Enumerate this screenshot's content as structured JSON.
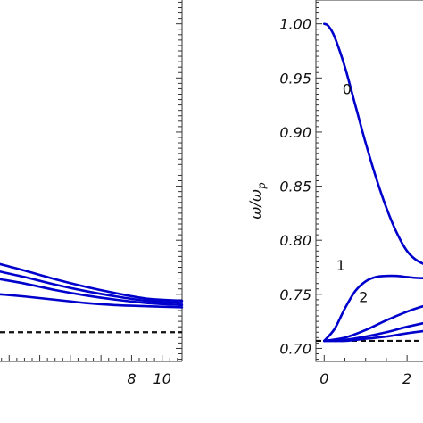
{
  "chart_data": [
    {
      "type": "line",
      "xlabel": "",
      "ylabel": "",
      "xlim": [
        -0.6,
        11.3
      ],
      "ylim": [
        0.688,
        1.022
      ],
      "x_ticks": [
        8,
        10
      ],
      "x_tick_labels": [
        "8",
        "10"
      ],
      "reference_line": {
        "y": 0.715,
        "style": "dashed"
      },
      "series": [
        {
          "x": [
            -0.6,
            1,
            3,
            5,
            7,
            9,
            11.3
          ],
          "values": [
            0.778,
            0.772,
            0.764,
            0.757,
            0.751,
            0.746,
            0.744
          ]
        },
        {
          "x": [
            -0.6,
            1,
            3,
            5,
            7,
            9,
            11.3
          ],
          "values": [
            0.771,
            0.766,
            0.759,
            0.753,
            0.748,
            0.744,
            0.742
          ]
        },
        {
          "x": [
            -0.6,
            1,
            3,
            5,
            7,
            9,
            11.3
          ],
          "values": [
            0.764,
            0.76,
            0.754,
            0.749,
            0.745,
            0.742,
            0.74
          ]
        },
        {
          "x": [
            -0.6,
            1,
            3,
            5,
            7,
            9,
            11.3
          ],
          "values": [
            0.75,
            0.748,
            0.745,
            0.742,
            0.74,
            0.739,
            0.738
          ]
        }
      ]
    },
    {
      "type": "line",
      "xlabel": "",
      "ylabel": "ω/ω",
      "ylabel_subscript": "p",
      "xlim": [
        -0.2,
        2.6
      ],
      "ylim": [
        0.688,
        1.022
      ],
      "x_ticks": [
        0,
        2
      ],
      "x_tick_labels": [
        "0",
        "2"
      ],
      "y_ticks": [
        0.7,
        0.75,
        0.8,
        0.85,
        0.9,
        0.95,
        1.0
      ],
      "y_tick_labels": [
        "0.70",
        "0.75",
        "0.80",
        "0.85",
        "0.90",
        "0.95",
        "1.00"
      ],
      "reference_line": {
        "y": 0.707,
        "style": "dashed"
      },
      "series": [
        {
          "name": "0",
          "x": [
            0,
            0.1,
            0.25,
            0.5,
            0.75,
            1.0,
            1.25,
            1.5,
            1.75,
            2.0,
            2.25,
            2.6
          ],
          "values": [
            1.0,
            0.998,
            0.988,
            0.96,
            0.925,
            0.89,
            0.858,
            0.83,
            0.807,
            0.79,
            0.781,
            0.775
          ]
        },
        {
          "name": "1",
          "x": [
            0,
            0.25,
            0.5,
            0.75,
            1.0,
            1.25,
            1.5,
            1.75,
            2.0,
            2.3,
            2.6
          ],
          "values": [
            0.707,
            0.718,
            0.737,
            0.753,
            0.762,
            0.766,
            0.767,
            0.767,
            0.766,
            0.765,
            0.765
          ]
        },
        {
          "name": "2",
          "x": [
            0,
            0.5,
            1.0,
            1.5,
            2.0,
            2.3,
            2.6
          ],
          "values": [
            0.707,
            0.71,
            0.717,
            0.726,
            0.734,
            0.738,
            0.741
          ]
        },
        {
          "name": "",
          "x": [
            0,
            0.5,
            1.0,
            1.5,
            2.0,
            2.6
          ],
          "values": [
            0.707,
            0.708,
            0.711,
            0.715,
            0.72,
            0.725
          ]
        },
        {
          "name": "",
          "x": [
            0,
            0.5,
            1.0,
            1.5,
            2.0,
            2.6
          ],
          "values": [
            0.707,
            0.707,
            0.709,
            0.711,
            0.714,
            0.717
          ]
        }
      ],
      "annotations": [
        {
          "text": "0",
          "x": 0.55,
          "y": 0.935
        },
        {
          "text": "1",
          "x": 0.4,
          "y": 0.772
        },
        {
          "text": "2",
          "x": 0.95,
          "y": 0.743
        }
      ]
    }
  ],
  "colors": {
    "curve": "#0000cc",
    "reference": "#111111",
    "axis": "#333333"
  }
}
